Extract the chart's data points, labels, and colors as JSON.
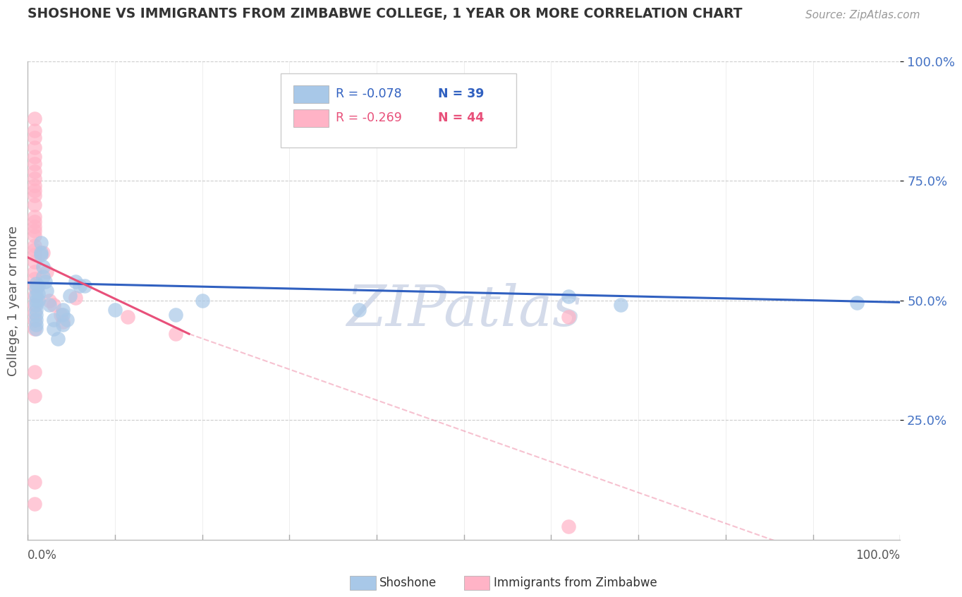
{
  "title": "SHOSHONE VS IMMIGRANTS FROM ZIMBABWE COLLEGE, 1 YEAR OR MORE CORRELATION CHART",
  "source_text": "Source: ZipAtlas.com",
  "ylabel": "College, 1 year or more",
  "legend_r_n": [
    {
      "R": "R = -0.078",
      "N": "N = 39"
    },
    {
      "R": "R = -0.269",
      "N": "N = 44"
    }
  ],
  "shoshone_color": "#A8C8E8",
  "zimbabwe_color": "#FFB3C6",
  "shoshone_line_color": "#3060C0",
  "zimbabwe_line_color": "#E8507A",
  "background_color": "#FFFFFF",
  "grid_color": "#CCCCCC",
  "ytick_color": "#4472C4",
  "shoshone_points": [
    [
      0.01,
      0.535
    ],
    [
      0.01,
      0.525
    ],
    [
      0.01,
      0.51
    ],
    [
      0.01,
      0.5
    ],
    [
      0.01,
      0.49
    ],
    [
      0.01,
      0.48
    ],
    [
      0.01,
      0.47
    ],
    [
      0.01,
      0.46
    ],
    [
      0.01,
      0.45
    ],
    [
      0.01,
      0.44
    ],
    [
      0.012,
      0.53
    ],
    [
      0.012,
      0.515
    ],
    [
      0.012,
      0.5
    ],
    [
      0.015,
      0.62
    ],
    [
      0.015,
      0.6
    ],
    [
      0.015,
      0.595
    ],
    [
      0.018,
      0.57
    ],
    [
      0.018,
      0.55
    ],
    [
      0.02,
      0.54
    ],
    [
      0.022,
      0.52
    ],
    [
      0.025,
      0.49
    ],
    [
      0.03,
      0.46
    ],
    [
      0.03,
      0.44
    ],
    [
      0.035,
      0.42
    ],
    [
      0.04,
      0.48
    ],
    [
      0.04,
      0.47
    ],
    [
      0.04,
      0.45
    ],
    [
      0.045,
      0.46
    ],
    [
      0.048,
      0.51
    ],
    [
      0.055,
      0.54
    ],
    [
      0.06,
      0.53
    ],
    [
      0.065,
      0.53
    ],
    [
      0.1,
      0.48
    ],
    [
      0.17,
      0.47
    ],
    [
      0.2,
      0.5
    ],
    [
      0.38,
      0.48
    ],
    [
      0.62,
      0.508
    ],
    [
      0.68,
      0.49
    ],
    [
      0.95,
      0.495
    ]
  ],
  "zimbabwe_points": [
    [
      0.008,
      0.88
    ],
    [
      0.008,
      0.855
    ],
    [
      0.008,
      0.84
    ],
    [
      0.008,
      0.82
    ],
    [
      0.008,
      0.8
    ],
    [
      0.008,
      0.785
    ],
    [
      0.008,
      0.77
    ],
    [
      0.008,
      0.755
    ],
    [
      0.008,
      0.74
    ],
    [
      0.008,
      0.73
    ],
    [
      0.008,
      0.72
    ],
    [
      0.008,
      0.7
    ],
    [
      0.008,
      0.675
    ],
    [
      0.008,
      0.665
    ],
    [
      0.008,
      0.655
    ],
    [
      0.008,
      0.645
    ],
    [
      0.008,
      0.635
    ],
    [
      0.008,
      0.615
    ],
    [
      0.008,
      0.605
    ],
    [
      0.008,
      0.595
    ],
    [
      0.008,
      0.58
    ],
    [
      0.008,
      0.56
    ],
    [
      0.008,
      0.545
    ],
    [
      0.008,
      0.53
    ],
    [
      0.008,
      0.51
    ],
    [
      0.008,
      0.49
    ],
    [
      0.008,
      0.475
    ],
    [
      0.008,
      0.458
    ],
    [
      0.008,
      0.44
    ],
    [
      0.008,
      0.35
    ],
    [
      0.008,
      0.3
    ],
    [
      0.008,
      0.12
    ],
    [
      0.008,
      0.075
    ],
    [
      0.018,
      0.6
    ],
    [
      0.022,
      0.56
    ],
    [
      0.025,
      0.5
    ],
    [
      0.03,
      0.49
    ],
    [
      0.038,
      0.47
    ],
    [
      0.04,
      0.455
    ],
    [
      0.055,
      0.505
    ],
    [
      0.115,
      0.465
    ],
    [
      0.17,
      0.43
    ],
    [
      0.62,
      0.465
    ],
    [
      0.62,
      0.028
    ]
  ],
  "shoshone_trend": [
    0.0,
    0.537,
    1.0,
    0.496
  ],
  "zimbabwe_trend_solid": [
    0.0,
    0.59,
    0.185,
    0.43
  ],
  "zimbabwe_trend_dash": [
    0.185,
    0.43,
    1.0,
    -0.095
  ],
  "xlim": [
    0.0,
    1.0
  ],
  "ylim": [
    0.0,
    1.0
  ],
  "yticks": [
    0.25,
    0.5,
    0.75,
    1.0
  ],
  "ytick_labels": [
    "25.0%",
    "50.0%",
    "75.0%",
    "100.0%"
  ],
  "watermark": "ZIPatlas"
}
